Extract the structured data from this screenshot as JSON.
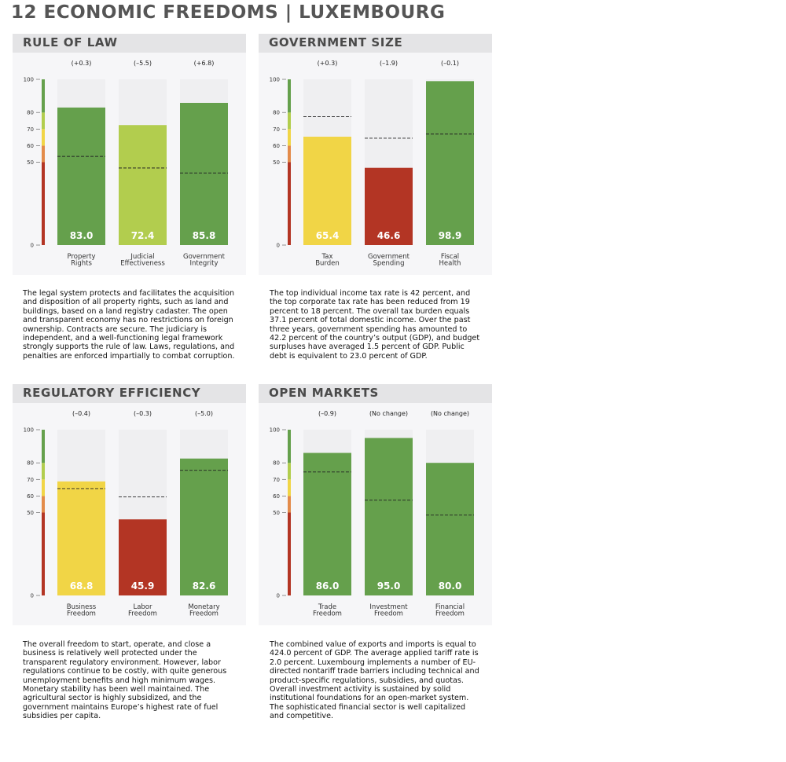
{
  "title": "12 ECONOMIC FREEDOMS | LUXEMBOURG",
  "colors": {
    "green": "#65a04c",
    "lightgreen": "#b2cd4e",
    "yellow": "#f1d546",
    "orange": "#e38b4a",
    "red": "#b33524",
    "bar_bg": "#efeff1",
    "panel_bg": "#f6f6f8",
    "header_bg": "#e4e4e6"
  },
  "chart_data": [
    {
      "type": "bar",
      "title": "RULE OF LAW",
      "categories": [
        "Property Rights",
        "Judicial Effectiveness",
        "Government Integrity"
      ],
      "category_lines": [
        [
          "Property",
          "Rights"
        ],
        [
          "Judicial",
          "Effectiveness"
        ],
        [
          "Government",
          "Integrity"
        ]
      ],
      "values": [
        83.0,
        72.4,
        85.8
      ],
      "value_labels": [
        "83.0",
        "72.4",
        "85.8"
      ],
      "changes": [
        "(+0.3)",
        "(–5.5)",
        "(+6.8)"
      ],
      "reference_values": [
        53.5,
        46.5,
        43.5
      ],
      "bar_colors": [
        "green",
        "lightgreen",
        "green"
      ],
      "ylim": [
        0,
        100
      ],
      "yticks": [
        "0",
        "50",
        "60",
        "70",
        "80",
        "100"
      ],
      "ytick_values": [
        0,
        50,
        60,
        70,
        80,
        100
      ],
      "description": "The legal system protects and facilitates the acquisition and disposition of all property rights, such as land and buildings, based on a land registry cadaster. The open and transparent economy has no restrictions on foreign ownership. Contracts are secure. The judiciary is independent, and a well-functioning legal framework strongly supports the rule of law. Laws, regulations, and penalties are enforced impartially to combat corruption."
    },
    {
      "type": "bar",
      "title": "GOVERNMENT SIZE",
      "categories": [
        "Tax Burden",
        "Government Spending",
        "Fiscal Health"
      ],
      "category_lines": [
        [
          "Tax",
          "Burden"
        ],
        [
          "Government",
          "Spending"
        ],
        [
          "Fiscal",
          "Health"
        ]
      ],
      "values": [
        65.4,
        46.6,
        98.9
      ],
      "value_labels": [
        "65.4",
        "46.6",
        "98.9"
      ],
      "changes": [
        "(+0.3)",
        "(–1.9)",
        "(–0.1)"
      ],
      "reference_values": [
        77.5,
        64.5,
        67.0
      ],
      "bar_colors": [
        "yellow",
        "red",
        "green"
      ],
      "ylim": [
        0,
        100
      ],
      "yticks": [
        "0",
        "50",
        "60",
        "70",
        "80",
        "100"
      ],
      "ytick_values": [
        0,
        50,
        60,
        70,
        80,
        100
      ],
      "description": "The top individual income tax rate is 42 percent, and the top corporate tax rate has been reduced from 19 percent to 18 percent. The overall tax burden equals 37.1 percent of total domestic income. Over the past three years, government spending has amounted to 42.2 percent of the country’s output (GDP), and budget surpluses have averaged 1.5 percent of GDP. Public debt is equivalent to 23.0 percent of GDP."
    },
    {
      "type": "bar",
      "title": "REGULATORY EFFICIENCY",
      "categories": [
        "Business Freedom",
        "Labor Freedom",
        "Monetary Freedom"
      ],
      "category_lines": [
        [
          "Business",
          "Freedom"
        ],
        [
          "Labor",
          "Freedom"
        ],
        [
          "Monetary",
          "Freedom"
        ]
      ],
      "values": [
        68.8,
        45.9,
        82.6
      ],
      "value_labels": [
        "68.8",
        "45.9",
        "82.6"
      ],
      "changes": [
        "(–0.4)",
        "(–0.3)",
        "(–5.0)"
      ],
      "reference_values": [
        64.5,
        59.5,
        75.5
      ],
      "bar_colors": [
        "yellow",
        "red",
        "green"
      ],
      "ylim": [
        0,
        100
      ],
      "yticks": [
        "0",
        "50",
        "60",
        "70",
        "80",
        "100"
      ],
      "ytick_values": [
        0,
        50,
        60,
        70,
        80,
        100
      ],
      "description": "The overall freedom to start, operate, and close a business is relatively well protected under the transparent regulatory environment. However, labor regulations continue to be costly, with quite generous unemployment benefits and high minimum wages. Monetary stability has been well maintained. The agricultural sector is highly subsidized, and the government maintains Europe’s highest rate of fuel subsidies per capita."
    },
    {
      "type": "bar",
      "title": "OPEN MARKETS",
      "categories": [
        "Trade Freedom",
        "Investment Freedom",
        "Financial Freedom"
      ],
      "category_lines": [
        [
          "Trade",
          "Freedom"
        ],
        [
          "Investment",
          "Freedom"
        ],
        [
          "Financial",
          "Freedom"
        ]
      ],
      "values": [
        86.0,
        95.0,
        80.0
      ],
      "value_labels": [
        "86.0",
        "95.0",
        "80.0"
      ],
      "changes": [
        "(–0.9)",
        "(No change)",
        "(No change)"
      ],
      "reference_values": [
        74.5,
        57.5,
        48.5
      ],
      "bar_colors": [
        "green",
        "green",
        "green"
      ],
      "ylim": [
        0,
        100
      ],
      "yticks": [
        "0",
        "50",
        "60",
        "70",
        "80",
        "100"
      ],
      "ytick_values": [
        0,
        50,
        60,
        70,
        80,
        100
      ],
      "description": "The combined value of exports and imports is equal to 424.0 percent of GDP. The average applied tariff rate is 2.0 percent. Luxembourg implements a number of EU-directed nontariff trade barriers including technical and product-specific regulations, subsidies, and quotas. Overall investment activity is sustained by solid institutional foundations for an open-market system. The sophisticated financial sector is well capitalized and competitive."
    }
  ]
}
